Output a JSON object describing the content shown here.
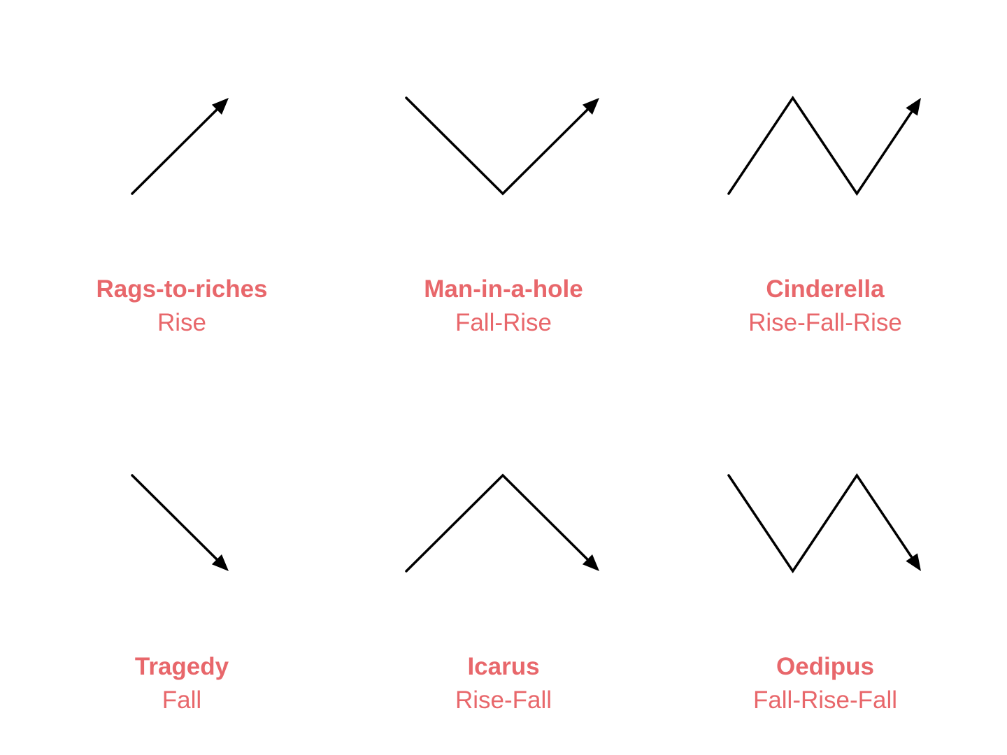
{
  "colors": {
    "label": "#e8676b",
    "line": "#000000",
    "background": "#ffffff"
  },
  "arcs": [
    {
      "name": "Rags-to-riches",
      "shape": "Rise",
      "pattern": [
        "low",
        "high"
      ],
      "end": "arrow"
    },
    {
      "name": "Man-in-a-hole",
      "shape": "Fall-Rise",
      "pattern": [
        "high",
        "low",
        "high"
      ],
      "end": "arrow"
    },
    {
      "name": "Cinderella",
      "shape": "Rise-Fall-Rise",
      "pattern": [
        "low",
        "high",
        "low",
        "high"
      ],
      "end": "arrow"
    },
    {
      "name": "Tragedy",
      "shape": "Fall",
      "pattern": [
        "high",
        "low"
      ],
      "end": "arrow"
    },
    {
      "name": "Icarus",
      "shape": "Rise-Fall",
      "pattern": [
        "low",
        "high",
        "low"
      ],
      "end": "arrow"
    },
    {
      "name": "Oedipus",
      "shape": "Fall-Rise-Fall",
      "pattern": [
        "high",
        "low",
        "high",
        "low"
      ],
      "end": "arrow"
    }
  ]
}
